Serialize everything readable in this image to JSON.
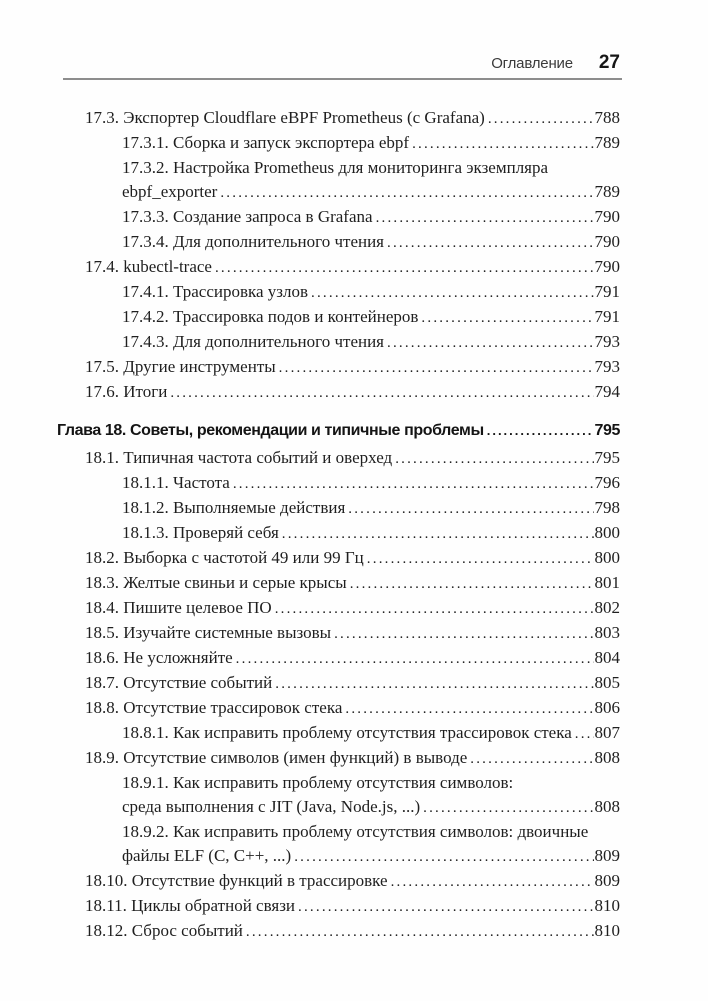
{
  "header": {
    "title": "Оглавление",
    "page_number": "27"
  },
  "toc": {
    "entries": [
      {
        "level": 1,
        "text": "17.3. Экспортер Cloudflare eBPF Prometheus (с Grafana)",
        "page": "788"
      },
      {
        "level": 2,
        "text": "17.3.1. Сборка и запуск экспортера ebpf",
        "page": "789"
      },
      {
        "level": 2,
        "text": "17.3.2. Настройка Prometheus для мониторинга экземпляра",
        "text2": "ebpf_exporter",
        "page": "789"
      },
      {
        "level": 2,
        "text": "17.3.3. Создание запроса в Grafana",
        "page": "790"
      },
      {
        "level": 2,
        "text": "17.3.4. Для дополнительного чтения",
        "page": "790"
      },
      {
        "level": 1,
        "text": "17.4. kubectl-trace",
        "page": "790"
      },
      {
        "level": 2,
        "text": "17.4.1. Трассировка узлов",
        "page": "791"
      },
      {
        "level": 2,
        "text": "17.4.2. Трассировка подов и контейнеров",
        "page": "791"
      },
      {
        "level": 2,
        "text": "17.4.3. Для дополнительного чтения",
        "page": "793"
      },
      {
        "level": 1,
        "text": "17.5. Другие инструменты",
        "page": "793"
      },
      {
        "level": 1,
        "text": "17.6. Итоги",
        "page": "794"
      },
      {
        "level": 0,
        "style": "chapter",
        "text": "Глава 18. Советы, рекомендации и типичные проблемы",
        "page": "795"
      },
      {
        "level": 1,
        "text": "18.1. Типичная частота событий и оверхед",
        "page": "795"
      },
      {
        "level": 2,
        "text": "18.1.1. Частота",
        "page": "796"
      },
      {
        "level": 2,
        "text": "18.1.2. Выполняемые действия",
        "page": "798"
      },
      {
        "level": 2,
        "text": "18.1.3. Проверяй себя",
        "page": "800"
      },
      {
        "level": 1,
        "text": "18.2. Выборка с частотой 49 или 99 Гц",
        "page": "800"
      },
      {
        "level": 1,
        "text": "18.3. Желтые свиньи и серые крысы",
        "page": "801"
      },
      {
        "level": 1,
        "text": "18.4. Пишите целевое ПО",
        "page": "802"
      },
      {
        "level": 1,
        "text": "18.5. Изучайте системные вызовы",
        "page": "803"
      },
      {
        "level": 1,
        "text": "18.6. Не усложняйте",
        "page": "804"
      },
      {
        "level": 1,
        "text": "18.7. Отсутствие событий",
        "page": "805"
      },
      {
        "level": 1,
        "text": "18.8. Отсутствие трассировок стека",
        "page": "806"
      },
      {
        "level": 2,
        "text": "18.8.1. Как исправить проблему отсутствия трассировок стека",
        "page": "807"
      },
      {
        "level": 1,
        "text": "18.9. Отсутствие символов (имен функций) в выводе",
        "page": "808"
      },
      {
        "level": 2,
        "text": "18.9.1. Как исправить проблему отсутствия символов:",
        "text2": "среда выполнения с JIT (Java, Node.js, ...)",
        "page": "808"
      },
      {
        "level": 2,
        "text": "18.9.2. Как исправить проблему отсутствия символов: двоичные",
        "text2": "файлы ELF (C, C++, ...)",
        "page": "809"
      },
      {
        "level": 1,
        "text": "18.10. Отсутствие функций в трассировке",
        "page": "809"
      },
      {
        "level": 1,
        "text": "18.11. Циклы обратной связи",
        "page": "810"
      },
      {
        "level": 1,
        "text": "18.12. Сброс событий",
        "page": "810"
      }
    ]
  }
}
